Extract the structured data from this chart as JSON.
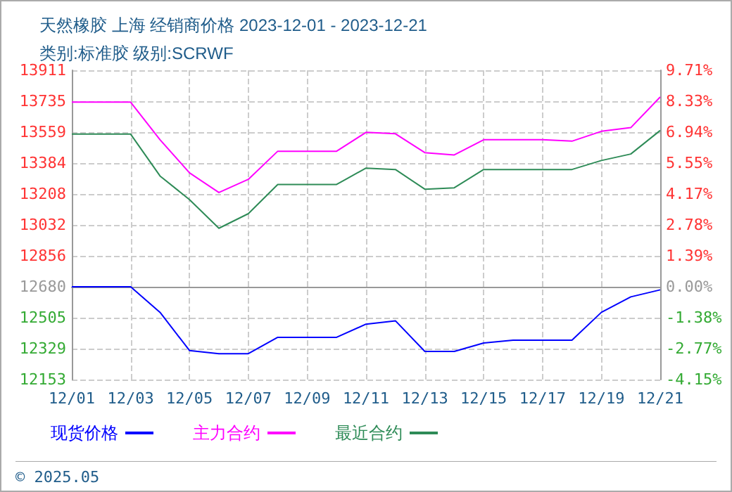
{
  "chart_data": {
    "type": "line",
    "title": "天然橡胶 上海 经销商价格 2023-12-01 - 2023-12-21",
    "subtitle": "类别:标准胶 级别:SCRWF",
    "categories": [
      "12/01",
      null,
      "12/03",
      null,
      "12/05",
      null,
      "12/07",
      null,
      "12/09",
      null,
      "12/11",
      null,
      "12/13",
      null,
      "12/15",
      null,
      "12/17",
      null,
      "12/19",
      null,
      "12/21"
    ],
    "series": [
      {
        "name": "现货价格",
        "color": "#0000ff",
        "values": [
          12680,
          12680,
          12680,
          12535,
          12318,
          12300,
          12300,
          12393,
          12393,
          12393,
          12468,
          12487,
          12313,
          12313,
          12361,
          12377,
          12377,
          12377,
          12535,
          12623,
          12663
        ]
      },
      {
        "name": "主力合约",
        "color": "#ff00ff",
        "values": [
          13730,
          13730,
          13730,
          13516,
          13328,
          13216,
          13291,
          13451,
          13451,
          13451,
          13558,
          13550,
          13443,
          13430,
          13516,
          13516,
          13516,
          13508,
          13564,
          13585,
          13759
        ]
      },
      {
        "name": "最近合约",
        "color": "#2e8b57",
        "values": [
          13548,
          13548,
          13548,
          13310,
          13176,
          13013,
          13096,
          13262,
          13262,
          13262,
          13355,
          13347,
          13235,
          13243,
          13347,
          13347,
          13347,
          13347,
          13398,
          13435,
          13569
        ]
      }
    ],
    "ylim": [
      12153,
      13911
    ],
    "yticks": [
      12153,
      12329,
      12505,
      12680,
      12856,
      13032,
      13208,
      13384,
      13559,
      13735,
      13911
    ],
    "y2lim": [
      -4.15,
      9.71
    ],
    "y2ticks": [
      {
        "value": -4.15,
        "label": "-4.15%"
      },
      {
        "value": -2.77,
        "label": "-2.77%"
      },
      {
        "value": -1.38,
        "label": "-1.38%"
      },
      {
        "value": 0,
        "label": "0.00%"
      },
      {
        "value": 1.39,
        "label": "1.39%"
      },
      {
        "value": 2.78,
        "label": "2.78%"
      },
      {
        "value": 4.17,
        "label": "4.17%"
      },
      {
        "value": 5.55,
        "label": "5.55%"
      },
      {
        "value": 6.94,
        "label": "6.94%"
      },
      {
        "value": 8.33,
        "label": "8.33%"
      },
      {
        "value": 9.71,
        "label": "9.71%"
      }
    ],
    "ref_lines": [
      {
        "axis": "y",
        "value": 12680,
        "label": null,
        "color": "#999999"
      }
    ],
    "grid": true,
    "legend": "bottom",
    "marker": "none",
    "line_style": "solid",
    "annotations": [
      "© 2025.05"
    ]
  }
}
